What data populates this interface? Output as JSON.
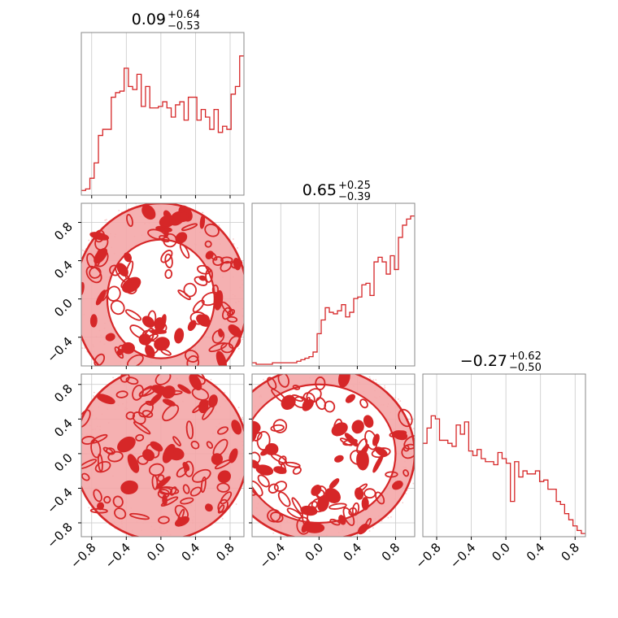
{
  "chart_data": {
    "type": "corner",
    "color": "#d62728",
    "fill_color": "#f4a7a9",
    "grid": true,
    "tick_values": [
      -0.8,
      -0.4,
      0.0,
      0.4,
      0.8
    ],
    "tick_labels": [
      "−0.8",
      "−0.4",
      "0.0",
      "0.4",
      "0.8"
    ],
    "tick_labels_p2": [
      "−0.4",
      "0.0",
      "0.4",
      "0.8"
    ],
    "axis_ranges": {
      "p0": [
        -0.92,
        0.96
      ],
      "p1": [
        -0.7,
        1.0
      ],
      "p2": [
        -0.96,
        0.92
      ]
    },
    "titles": [
      {
        "value": "0.09",
        "upper": "+0.64",
        "lower": "−0.53"
      },
      {
        "value": "0.65",
        "upper": "+0.25",
        "lower": "−0.39"
      },
      {
        "value": "−0.27",
        "upper": "+0.62",
        "lower": "−0.50"
      }
    ],
    "histograms": [
      {
        "param": "p0",
        "bin_width": 0.047,
        "counts": [
          0.02,
          0.03,
          0.1,
          0.2,
          0.38,
          0.42,
          0.42,
          0.63,
          0.66,
          0.67,
          0.82,
          0.7,
          0.68,
          0.78,
          0.57,
          0.7,
          0.56,
          0.56,
          0.57,
          0.6,
          0.56,
          0.5,
          0.58,
          0.6,
          0.48,
          0.63,
          0.63,
          0.48,
          0.55,
          0.5,
          0.42,
          0.55,
          0.4,
          0.44,
          0.42,
          0.65,
          0.7,
          0.9
        ]
      },
      {
        "param": "p1",
        "bin_width": 0.0425,
        "counts": [
          0.01,
          0,
          0,
          0,
          0,
          0.01,
          0.01,
          0.01,
          0.01,
          0.01,
          0.01,
          0.02,
          0.03,
          0.04,
          0.05,
          0.08,
          0.2,
          0.29,
          0.37,
          0.34,
          0.33,
          0.35,
          0.39,
          0.31,
          0.34,
          0.43,
          0.44,
          0.52,
          0.53,
          0.45,
          0.67,
          0.7,
          0.67,
          0.59,
          0.71,
          0.62,
          0.83,
          0.91,
          0.95,
          0.97
        ]
      },
      {
        "param": "p2",
        "bin_width": 0.047,
        "counts": [
          0.6,
          0.7,
          0.78,
          0.76,
          0.62,
          0.62,
          0.6,
          0.58,
          0.72,
          0.66,
          0.74,
          0.55,
          0.52,
          0.56,
          0.5,
          0.48,
          0.48,
          0.46,
          0.54,
          0.5,
          0.47,
          0.22,
          0.48,
          0.38,
          0.42,
          0.4,
          0.4,
          0.42,
          0.35,
          0.36,
          0.3,
          0.3,
          0.22,
          0.2,
          0.14,
          0.1,
          0.06,
          0.03,
          0.01
        ]
      }
    ]
  }
}
